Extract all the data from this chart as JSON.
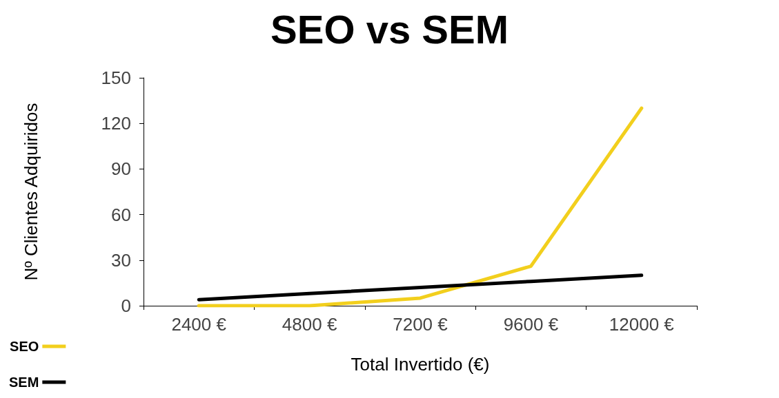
{
  "chart_data": {
    "type": "line",
    "title": "SEO vs SEM",
    "xlabel": "Total Invertido (€)",
    "ylabel": "Nº Clientes Adquiridos",
    "categories": [
      "2400 €",
      "4800 €",
      "7200 €",
      "9600 €",
      "12000 €"
    ],
    "series": [
      {
        "name": "SEO",
        "color": "#f2cf1d",
        "values": [
          0,
          0,
          5,
          26,
          130
        ]
      },
      {
        "name": "SEM",
        "color": "#000000",
        "values": [
          4,
          8,
          12,
          16,
          20
        ]
      }
    ],
    "ylim": [
      0,
      150
    ],
    "yticks": [
      0,
      30,
      60,
      90,
      120,
      150
    ],
    "grid": false,
    "legend": "bottom left",
    "marker": "none",
    "line_style": "solid"
  }
}
